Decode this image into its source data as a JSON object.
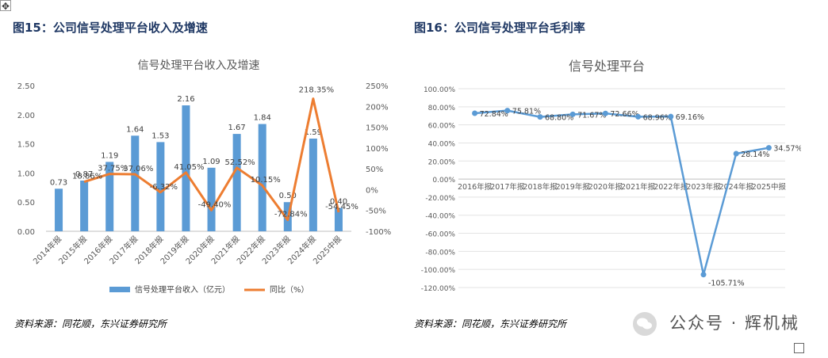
{
  "left": {
    "fig_title": "图15：公司信号处理平台收入及增速",
    "source": "资料来源：同花顺，东兴证券研究所"
  },
  "right": {
    "fig_title": "图16：公司信号处理平台毛利率",
    "source": "资料来源：同花顺，东兴证券研究所"
  },
  "watermark": {
    "text": "公众号 · 辉机械",
    "icon": "wechat-icon"
  },
  "chart_data": [
    {
      "type": "bar",
      "title": "信号处理平台收入及增速",
      "categories": [
        "2014年报",
        "2015年报",
        "2016年报",
        "2017年报",
        "2018年报",
        "2019年报",
        "2020年报",
        "2021年报",
        "2022年报",
        "2023年报",
        "2024年报",
        "2025中报"
      ],
      "series": [
        {
          "name": "信号处理平台收入（亿元）",
          "type": "bar",
          "axis": "left",
          "color": "#5b9bd5",
          "values": [
            0.73,
            0.87,
            1.19,
            1.64,
            1.53,
            2.16,
            1.09,
            1.67,
            1.84,
            0.5,
            1.59,
            0.4
          ],
          "labels": [
            "0.73",
            "0.87",
            "1.19",
            "1.64",
            "1.53",
            "2.16",
            "1.09",
            "1.67",
            "1.84",
            "0.50",
            "1.59",
            "0.40"
          ]
        },
        {
          "name": "同比（%）",
          "type": "line",
          "axis": "right",
          "color": "#ed7d31",
          "values": [
            null,
            18.86,
            37.75,
            37.06,
            -6.32,
            41.05,
            -49.4,
            52.52,
            10.15,
            -72.84,
            218.35,
            -54.45
          ],
          "labels": [
            "",
            "18.86%",
            "37.75%",
            "37.06%",
            "-6.32%",
            "41.05%",
            "-49.40%",
            "52.52%",
            "10.15%",
            "-72.84%",
            "218.35%",
            "-54.45%"
          ]
        }
      ],
      "y_left": {
        "ylim": [
          0,
          2.5
        ],
        "ticks": [
          "0.00",
          "0.50",
          "1.00",
          "1.50",
          "2.00",
          "2.50"
        ]
      },
      "y_right": {
        "ylim": [
          -100,
          250
        ],
        "ticks": [
          "-100%",
          "-50%",
          "0%",
          "50%",
          "100%",
          "150%",
          "200%",
          "250%"
        ]
      },
      "legend": "bottom"
    },
    {
      "type": "line",
      "title": "信号处理平台",
      "categories": [
        "2016年报",
        "2017年报",
        "2018年报",
        "2019年报",
        "2020年报",
        "2021年报",
        "2022年报",
        "2023年报",
        "2024年报",
        "2025中报"
      ],
      "series": [
        {
          "name": "",
          "color": "#5b9bd5",
          "values": [
            72.84,
            75.81,
            68.8,
            71.67,
            72.66,
            68.96,
            69.16,
            -105.71,
            28.14,
            34.57
          ],
          "labels": [
            "72.84%",
            "75.81%",
            "68.80%",
            "71.67%",
            "72.66%",
            "68.96%",
            "69.16%",
            "-105.71%",
            "28.14%",
            "34.57%"
          ]
        }
      ],
      "y": {
        "ylim": [
          -120,
          100
        ],
        "ticks": [
          "100.00%",
          "80.00%",
          "60.00%",
          "40.00%",
          "20.00%",
          "0.00%",
          "-20.00%",
          "-40.00%",
          "-60.00%",
          "-80.00%",
          "-100.00%",
          "-120.00%"
        ]
      },
      "grid": true
    }
  ]
}
